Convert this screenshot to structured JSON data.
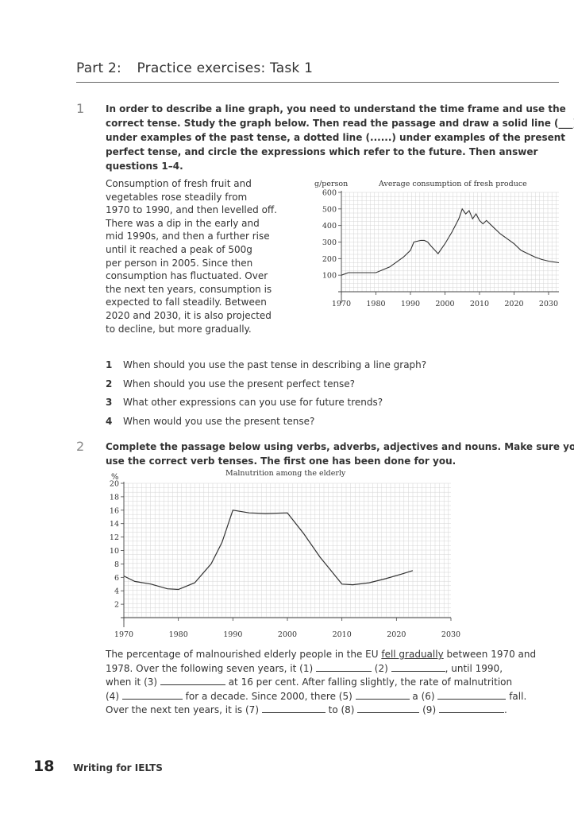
{
  "header": {
    "part": "Part 2:",
    "title": "Practice exercises: Task 1"
  },
  "ex1": {
    "number": "1",
    "instructions": [
      "In order to describe a line graph, you need to understand the time frame and use the",
      "correct tense. Study the graph below. Then read the passage and draw a solid line (___)",
      "under examples of the past tense, a dotted line (......) under examples of the present",
      "perfect tense, and circle the expressions which refer to the future. Then answer",
      "questions 1–4."
    ],
    "passage": [
      "Consumption of fresh fruit and",
      "vegetables rose steadily from",
      "1970 to 1990, and then levelled off.",
      "There was a dip in the early and",
      "mid 1990s, and then a further rise",
      "until it reached a peak of 500g",
      "per person in 2005. Since then",
      "consumption has fluctuated. Over",
      "the next ten years, consumption is",
      "expected to fall steadily. Between",
      "2020 and 2030, it is also projected",
      "to decline, but more gradually."
    ],
    "questions": [
      {
        "n": "1",
        "text": "When should you use the past tense in describing a line graph?"
      },
      {
        "n": "2",
        "text": "When should you use the present perfect tense?"
      },
      {
        "n": "3",
        "text": "What other expressions can you use for future trends?"
      },
      {
        "n": "4",
        "text": "When would you use the present tense?"
      }
    ]
  },
  "ex2": {
    "number": "2",
    "instructions": [
      "Complete the passage below using verbs, adverbs, adjectives and nouns. Make sure you",
      "use the correct verb tenses. The first one has been done for you."
    ],
    "passage": {
      "l1_pre": "The percentage of malnourished elderly people in the EU ",
      "l1_u": "fell gradually",
      "l1_post": " between 1970 and",
      "l2_a": "1978. Over the following seven years, it (1) ",
      "l2_b": " (2) ",
      "l2_c": ", until 1990,",
      "l3_a": "when it (3) ",
      "l3_b": " at 16 per cent. After falling slightly, the rate of malnutrition",
      "l4_a": "(4) ",
      "l4_b": " for a decade. Since 2000, there (5) ",
      "l4_c": " a (6) ",
      "l4_d": " fall.",
      "l5_a": "Over the next ten years, it is (7) ",
      "l5_b": " to (8) ",
      "l5_c": " (9) ",
      "l5_d": "."
    }
  },
  "chart_data": [
    {
      "type": "line",
      "title": "Average consumption of fresh produce",
      "ylabel": "g/person",
      "xlabel": "",
      "x_ticks": [
        1970,
        1980,
        1990,
        2000,
        2010,
        2020,
        2030
      ],
      "y_ticks": [
        100,
        200,
        300,
        400,
        500,
        600
      ],
      "xlim": [
        1970,
        2033
      ],
      "ylim": [
        0,
        600
      ],
      "grid": true,
      "series": [
        {
          "x": [
            1970,
            1972,
            1976,
            1980,
            1984,
            1988,
            1990,
            1991,
            1993,
            1994,
            1995,
            1996,
            1998,
            2000,
            2002,
            2003,
            2004,
            2005,
            2006,
            2007,
            2008,
            2009,
            2010,
            2011,
            2012,
            2014,
            2016,
            2018,
            2020,
            2022,
            2024,
            2026,
            2028,
            2030,
            2033
          ],
          "y": [
            100,
            115,
            115,
            115,
            150,
            210,
            250,
            300,
            310,
            310,
            300,
            275,
            230,
            290,
            360,
            400,
            440,
            500,
            470,
            490,
            440,
            470,
            430,
            410,
            430,
            390,
            350,
            320,
            290,
            250,
            230,
            210,
            195,
            185,
            175
          ]
        }
      ]
    },
    {
      "type": "line",
      "title": "Malnutrition among the elderly",
      "ylabel": "%",
      "xlabel": "",
      "x_ticks": [
        1970,
        1980,
        1990,
        2000,
        2010,
        2020,
        2030
      ],
      "y_ticks": [
        2,
        4,
        6,
        8,
        10,
        12,
        14,
        16,
        18,
        20
      ],
      "xlim": [
        1970,
        2030
      ],
      "ylim": [
        0,
        20
      ],
      "grid": true,
      "series": [
        {
          "x": [
            1970,
            1972,
            1975,
            1978,
            1980,
            1983,
            1986,
            1988,
            1990,
            1993,
            1996,
            2000,
            2003,
            2006,
            2008,
            2010,
            2012,
            2015,
            2018,
            2021,
            2023
          ],
          "y": [
            6.2,
            5.4,
            5.0,
            4.3,
            4.2,
            5.2,
            8.0,
            11.2,
            16.0,
            15.6,
            15.5,
            15.6,
            12.5,
            9.0,
            7.0,
            5.0,
            4.9,
            5.2,
            5.8,
            6.5,
            7.0
          ]
        }
      ]
    }
  ],
  "footer": {
    "page": "18",
    "title": "Writing for IELTS"
  }
}
